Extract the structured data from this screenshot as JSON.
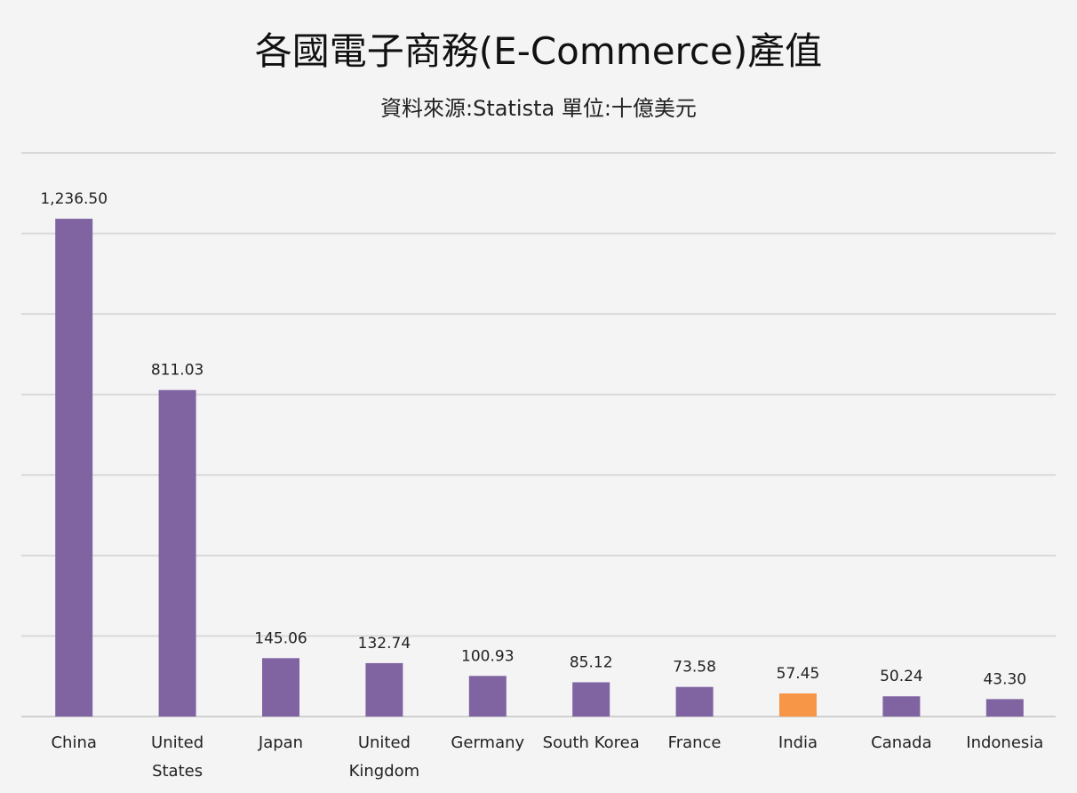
{
  "chart_data": {
    "type": "bar",
    "title": "各國電子商務(E-Commerce)產值",
    "subtitle": "資料來源:Statista 單位:十億美元",
    "categories": [
      "China",
      "United States",
      "Japan",
      "United Kingdom",
      "Germany",
      "South Korea",
      "France",
      "India",
      "Canada",
      "Indonesia"
    ],
    "category_lines": [
      [
        "China"
      ],
      [
        "United",
        "States"
      ],
      [
        "Japan"
      ],
      [
        "United",
        "Kingdom"
      ],
      [
        "Germany"
      ],
      [
        "South Korea"
      ],
      [
        "France"
      ],
      [
        "India"
      ],
      [
        "Canada"
      ],
      [
        "Indonesia"
      ]
    ],
    "values": [
      1236.5,
      811.03,
      145.06,
      132.74,
      100.93,
      85.12,
      73.58,
      57.45,
      50.24,
      43.3
    ],
    "value_labels": [
      "1,236.50",
      "811.03",
      "145.06",
      "132.74",
      "100.93",
      "85.12",
      "73.58",
      "57.45",
      "50.24",
      "43.30"
    ],
    "bar_colors": [
      "#8064a2",
      "#8064a2",
      "#8064a2",
      "#8064a2",
      "#8064a2",
      "#8064a2",
      "#8064a2",
      "#f79646",
      "#8064a2",
      "#8064a2"
    ],
    "xlabel": "",
    "ylabel": "",
    "ylim": [
      0,
      1400
    ],
    "grid": true,
    "y_axis_labels_shown": false,
    "legend": "none"
  }
}
